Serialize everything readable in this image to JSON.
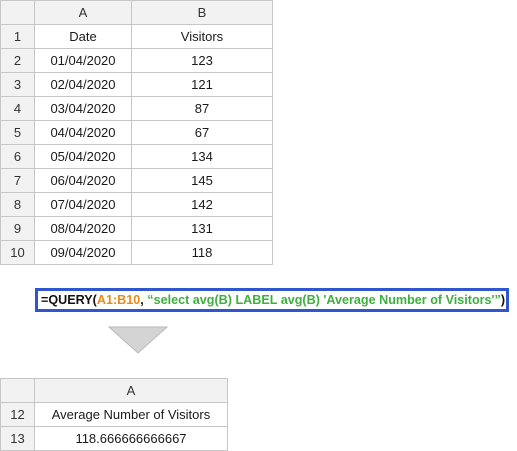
{
  "top_sheet": {
    "col_headers": [
      "A",
      "B"
    ],
    "rows": [
      {
        "num": "1",
        "a": "Date",
        "b": "Visitors"
      },
      {
        "num": "2",
        "a": "01/04/2020",
        "b": "123"
      },
      {
        "num": "3",
        "a": "02/04/2020",
        "b": "121"
      },
      {
        "num": "4",
        "a": "03/04/2020",
        "b": "87"
      },
      {
        "num": "5",
        "a": "04/04/2020",
        "b": "67"
      },
      {
        "num": "6",
        "a": "05/04/2020",
        "b": "134"
      },
      {
        "num": "7",
        "a": "06/04/2020",
        "b": "145"
      },
      {
        "num": "8",
        "a": "07/04/2020",
        "b": "142"
      },
      {
        "num": "9",
        "a": "08/04/2020",
        "b": "131"
      },
      {
        "num": "10",
        "a": "09/04/2020",
        "b": "118"
      }
    ]
  },
  "formula": {
    "prefix": "=QUERY(",
    "range": "A1:B10",
    "separator": ", ",
    "query_string": "“select avg(B) LABEL avg(B) 'Average Number of Visitors'”",
    "suffix": ")"
  },
  "bottom_sheet": {
    "col_headers": [
      "A"
    ],
    "rows": [
      {
        "num": "12",
        "a": "Average Number of Visitors"
      },
      {
        "num": "13",
        "a": "118.666666666667"
      }
    ]
  },
  "colors": {
    "formula_border": "#2f55cf",
    "range_color": "#e88a1a",
    "string_color": "#3fae3f",
    "header_bg": "#f2f2f2",
    "arrow_fill": "#d4d4d4"
  },
  "icons": {
    "result_arrow": "down-triangle-icon"
  }
}
